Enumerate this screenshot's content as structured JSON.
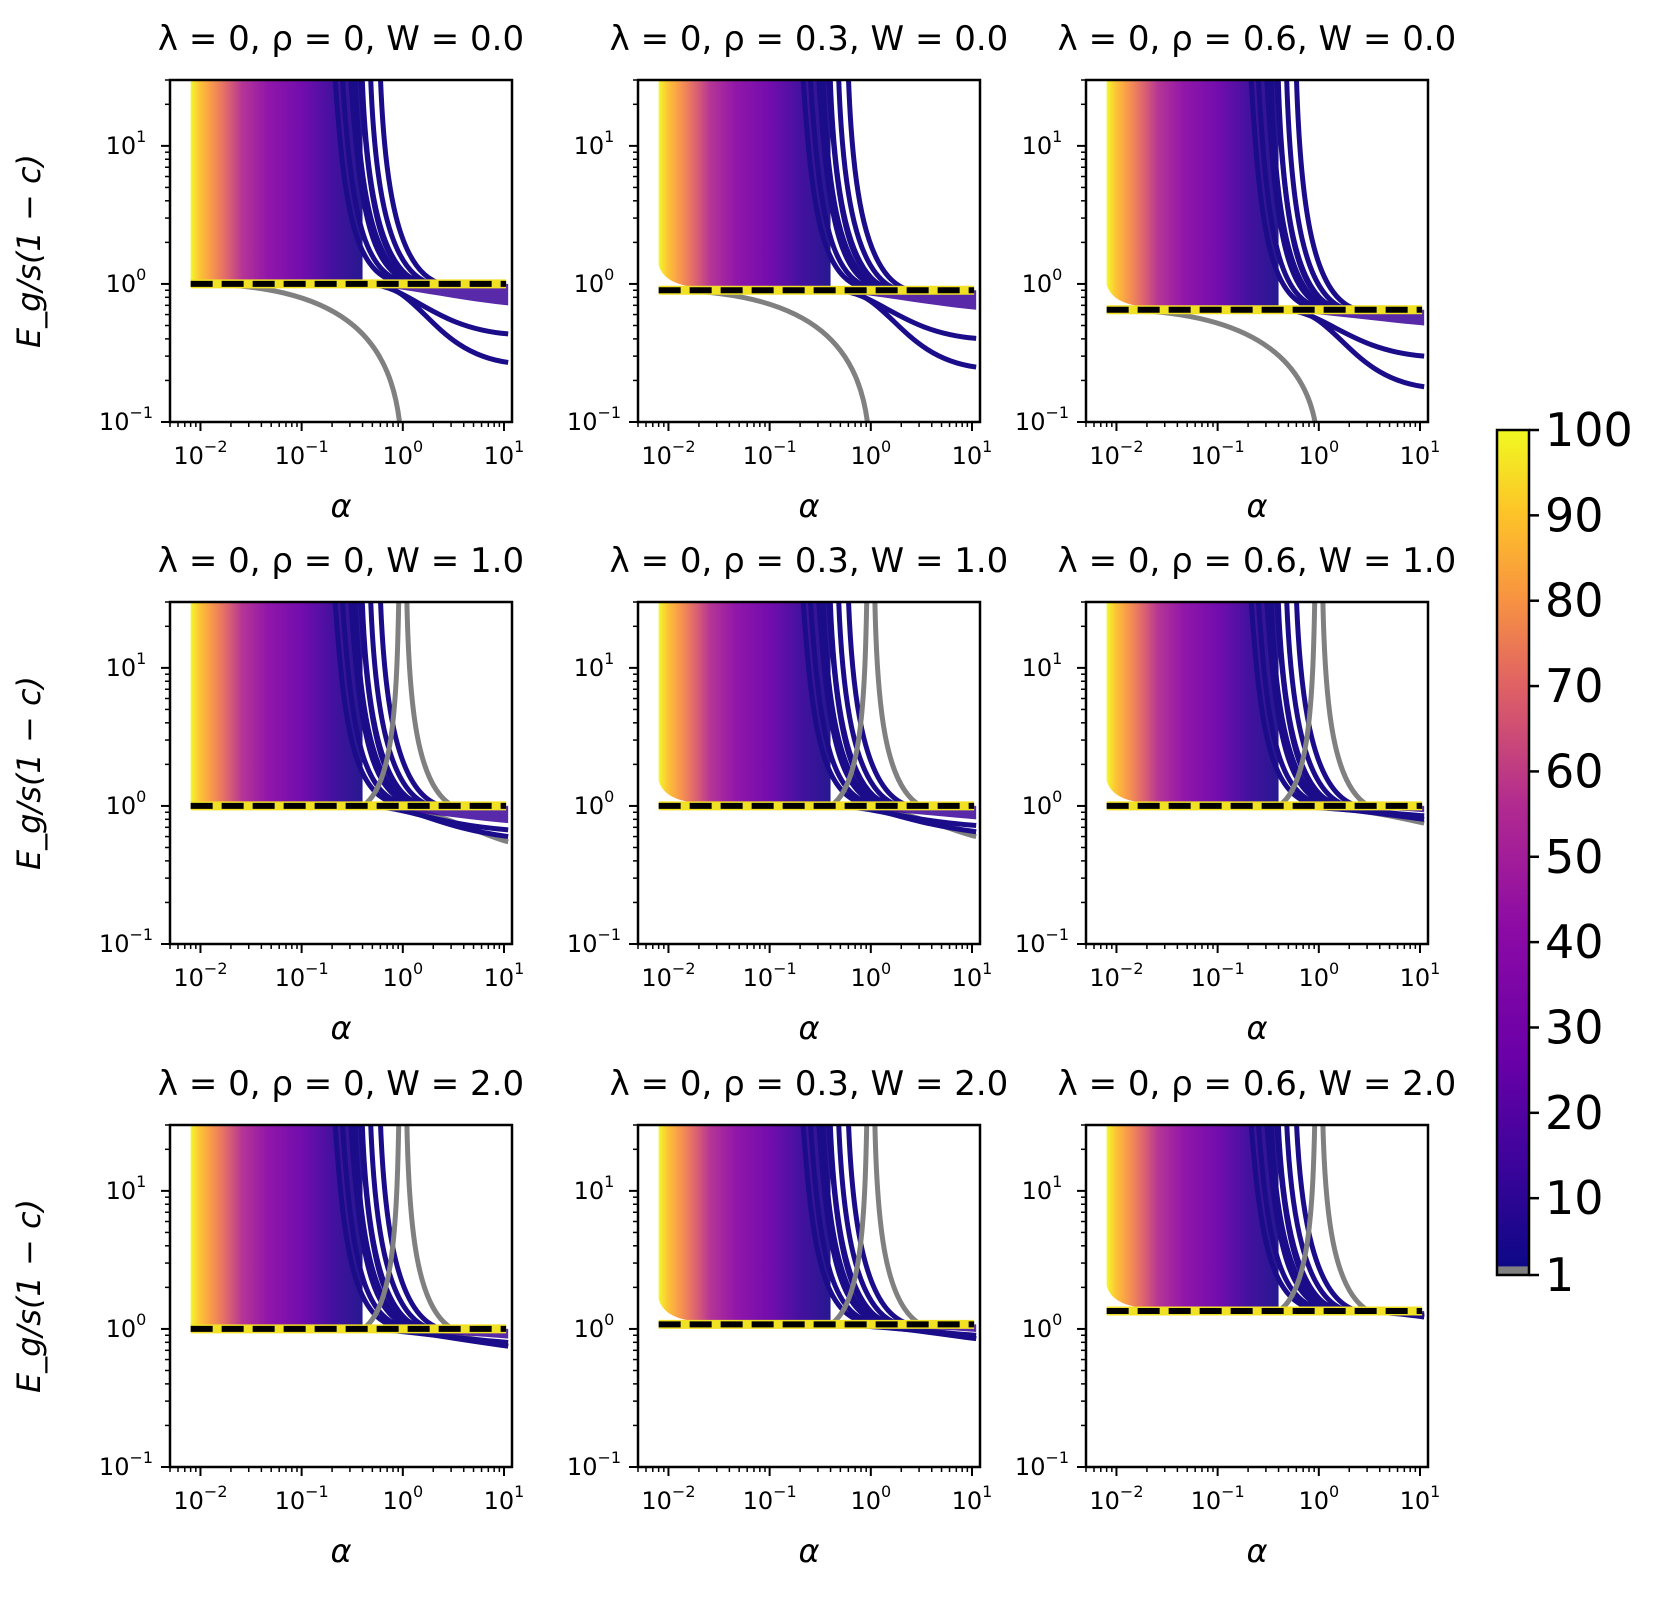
{
  "figure": {
    "ylabel": "E_g/s(1 − c)",
    "xlabel": "α",
    "x_tick_labels": [
      "10",
      "10",
      "10",
      "10"
    ],
    "x_tick_exponents": [
      "−2",
      "−1",
      "0",
      "1"
    ],
    "y_tick_labels": [
      "10",
      "10",
      "10"
    ],
    "y_tick_exponents": [
      "1",
      "0",
      "−1"
    ],
    "colorbar_tick_labels": [
      "100",
      "90",
      "80",
      "70",
      "60",
      "50",
      "40",
      "30",
      "20",
      "10",
      "1"
    ],
    "colors": {
      "dashed_outer": "#f0e124",
      "dashed_inner": "#000000",
      "s1_curve": "#808080"
    }
  },
  "chart_data": {
    "type": "line",
    "xscale": "log",
    "yscale": "log",
    "xlim": [
      0.005,
      12
    ],
    "ylim": [
      0.1,
      30
    ],
    "xlabel": "α",
    "ylabel": "E_g/s(1 − c)",
    "colorbar": {
      "range": [
        1,
        100
      ],
      "ticks": [
        1,
        10,
        20,
        30,
        40,
        50,
        60,
        70,
        80,
        90,
        100
      ],
      "colormap": "plasma",
      "low_color": "#808080"
    },
    "panels": [
      {
        "title": "λ = 0, ρ = 0, W = 0.0",
        "rho": 0,
        "W": 0.0,
        "baseline": 1.0,
        "gray_pole": null,
        "gray_tail_falls_to": 0.1,
        "fan_tail": [
          0.7,
          0.27
        ],
        "yellow_rise": false
      },
      {
        "title": "λ = 0, ρ = 0.3, W = 0.0",
        "rho": 0.3,
        "W": 0.0,
        "baseline": 0.9,
        "gray_pole": null,
        "gray_tail_falls_to": 0.1,
        "fan_tail": [
          0.65,
          0.25
        ],
        "yellow_rise": true
      },
      {
        "title": "λ = 0, ρ = 0.6, W = 0.0",
        "rho": 0.6,
        "W": 0.0,
        "baseline": 0.65,
        "gray_pole": null,
        "gray_tail_falls_to": 0.1,
        "fan_tail": [
          0.5,
          0.18
        ],
        "yellow_rise": true
      },
      {
        "title": "λ = 0, ρ = 0, W = 1.0",
        "rho": 0,
        "W": 1.0,
        "baseline": 1.0,
        "gray_pole": 1.0,
        "gray_tail_falls_to": 0.55,
        "fan_tail": [
          0.75,
          0.6
        ],
        "yellow_rise": false
      },
      {
        "title": "λ = 0, ρ = 0.3, W = 1.0",
        "rho": 0.3,
        "W": 1.0,
        "baseline": 1.0,
        "gray_pole": 1.0,
        "gray_tail_falls_to": 0.6,
        "fan_tail": [
          0.8,
          0.65
        ],
        "yellow_rise": true
      },
      {
        "title": "λ = 0, ρ = 0.6, W = 1.0",
        "rho": 0.6,
        "W": 1.0,
        "baseline": 1.0,
        "gray_pole": 1.0,
        "gray_tail_falls_to": 0.75,
        "fan_tail": [
          0.9,
          0.8
        ],
        "yellow_rise": true
      },
      {
        "title": "λ = 0, ρ = 0, W = 2.0",
        "rho": 0,
        "W": 2.0,
        "baseline": 1.0,
        "gray_pole": 1.0,
        "gray_tail_falls_to": 0.75,
        "fan_tail": [
          0.85,
          0.75
        ],
        "yellow_rise": false
      },
      {
        "title": "λ = 0, ρ = 0.3, W = 2.0",
        "rho": 0.3,
        "W": 2.0,
        "baseline": 1.08,
        "gray_pole": 1.0,
        "gray_tail_falls_to": 0.85,
        "fan_tail": [
          0.95,
          0.85
        ],
        "yellow_rise": true
      },
      {
        "title": "λ = 0, ρ = 0.6, W = 2.0",
        "rho": 0.6,
        "W": 2.0,
        "baseline": 1.35,
        "gray_pole": 1.0,
        "gray_tail_falls_to": 1.22,
        "fan_tail": [
          1.3,
          1.22
        ],
        "yellow_rise": true
      }
    ]
  }
}
